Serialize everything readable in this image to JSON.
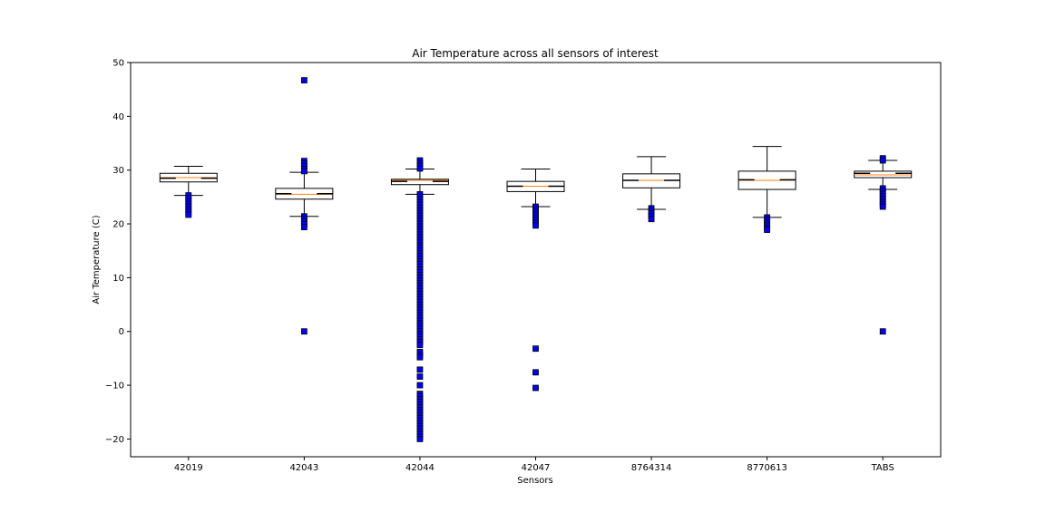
{
  "chart_data": {
    "type": "box",
    "title": "Air Temperature across all sensors of interest",
    "xlabel": "Sensors",
    "ylabel": "Air Temperature (C)",
    "ylim": [
      -23.3,
      50
    ],
    "yticks": [
      50,
      40,
      30,
      20,
      10,
      0,
      -10,
      -20
    ],
    "ytick_labels": [
      "50",
      "40",
      "30",
      "20",
      "10",
      "0",
      "−10",
      "−20"
    ],
    "grid": false,
    "colors": {
      "box_edge": "#000000",
      "median": "#000000",
      "mean_line": "#ff7f0e",
      "flier_fill": "#0000ff",
      "flier_edge": "#000000"
    },
    "categories": [
      "42019",
      "42043",
      "42044",
      "42047",
      "8764314",
      "8770613",
      "TABS"
    ],
    "boxes": [
      {
        "label": "42019",
        "whislo": 25.3,
        "q1": 27.8,
        "median": 28.5,
        "mean": 28.6,
        "q3": 29.4,
        "whishi": 30.7,
        "fliers": [
          25.3,
          24.8,
          24.2,
          23.7,
          23.2,
          22.7,
          22.2,
          21.7
        ]
      },
      {
        "label": "42043",
        "whislo": 21.4,
        "q1": 24.6,
        "median": 25.6,
        "mean": 25.5,
        "q3": 26.6,
        "whishi": 29.6,
        "fliers": [
          46.7,
          31.7,
          31.2,
          30.7,
          30.2,
          29.8,
          21.4,
          20.9,
          20.4,
          19.9,
          19.4,
          0.0
        ]
      },
      {
        "label": "42044",
        "whislo": 25.5,
        "q1": 27.3,
        "median": 27.9,
        "mean": 28.1,
        "q3": 28.3,
        "whishi": 30.2,
        "fliers": [
          31.8,
          31.3,
          30.8,
          30.3,
          25.5,
          25.0,
          24.5,
          24.0,
          23.5,
          23.0,
          22.5,
          22.0,
          21.5,
          21.0,
          20.5,
          20.0,
          19.5,
          19.0,
          18.5,
          18.0,
          17.5,
          17.0,
          16.5,
          16.0,
          15.5,
          15.0,
          14.5,
          14.0,
          13.5,
          13.0,
          12.5,
          12.0,
          11.5,
          11.0,
          10.5,
          10.0,
          9.5,
          9.0,
          8.5,
          8.0,
          7.5,
          7.0,
          6.5,
          6.0,
          5.5,
          5.0,
          4.5,
          4.0,
          3.5,
          3.0,
          2.5,
          2.0,
          1.5,
          1.0,
          0.5,
          0.0,
          -0.5,
          -1.0,
          -1.5,
          -2.0,
          -2.5,
          -3.8,
          -4.3,
          -4.8,
          -7.1,
          -8.4,
          -10.0,
          -11.6,
          -12.1,
          -12.6,
          -13.1,
          -13.6,
          -14.1,
          -14.6,
          -15.1,
          -15.6,
          -16.1,
          -16.6,
          -17.1,
          -17.6,
          -18.1,
          -18.6,
          -19.1,
          -19.6,
          -20.0
        ]
      },
      {
        "label": "42047",
        "whislo": 23.2,
        "q1": 26.0,
        "median": 27.0,
        "mean": 27.0,
        "q3": 27.9,
        "whishi": 30.2,
        "fliers": [
          23.2,
          22.7,
          22.2,
          21.7,
          21.2,
          20.7,
          20.2,
          19.7,
          -3.2,
          -7.6,
          -10.5
        ]
      },
      {
        "label": "8764314",
        "whislo": 22.7,
        "q1": 26.7,
        "median": 28.1,
        "mean": 28.1,
        "q3": 29.3,
        "whishi": 32.5,
        "fliers": [
          22.9,
          22.4,
          21.9,
          21.4,
          20.9
        ]
      },
      {
        "label": "8770613",
        "whislo": 21.2,
        "q1": 26.4,
        "median": 28.2,
        "mean": 28.1,
        "q3": 29.8,
        "whishi": 34.4,
        "fliers": [
          21.2,
          20.7,
          20.2,
          19.7,
          19.2,
          18.9
        ]
      },
      {
        "label": "TABS",
        "whislo": 26.4,
        "q1": 28.6,
        "median": 29.4,
        "mean": 29.1,
        "q3": 29.8,
        "whishi": 31.8,
        "fliers": [
          32.2,
          31.8,
          26.6,
          26.1,
          25.6,
          25.1,
          24.6,
          24.1,
          23.6,
          23.2,
          0.0
        ]
      }
    ]
  }
}
